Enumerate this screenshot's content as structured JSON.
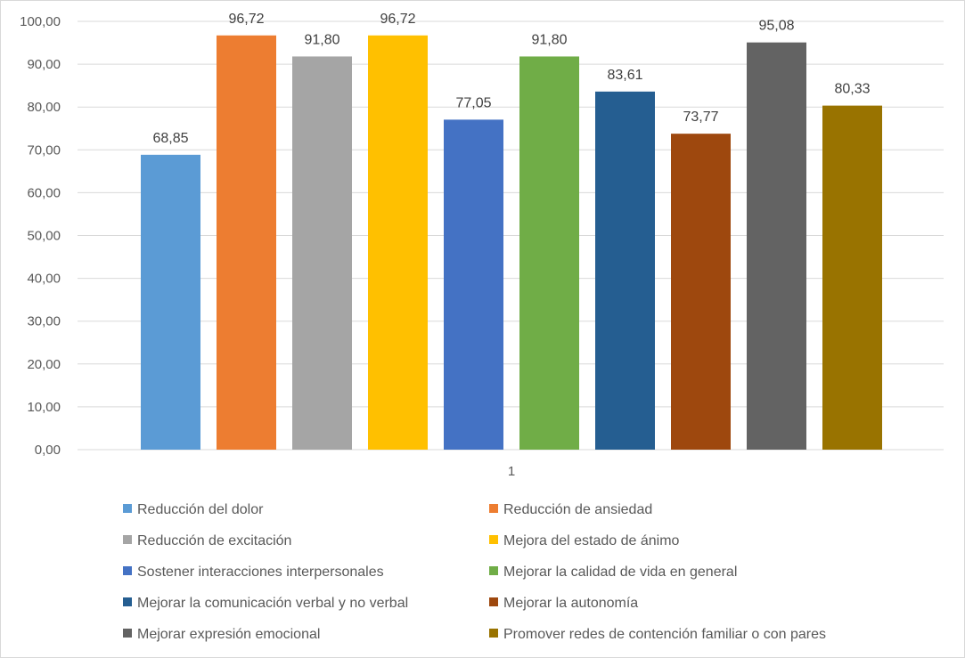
{
  "chart_data": {
    "type": "bar",
    "categories": [
      "1"
    ],
    "ylim": [
      0,
      100
    ],
    "ytick_step": 10,
    "ytick_labels": [
      "0,00",
      "10,00",
      "20,00",
      "30,00",
      "40,00",
      "50,00",
      "60,00",
      "70,00",
      "80,00",
      "90,00",
      "100,00"
    ],
    "grid": true,
    "legend_position": "bottom",
    "series": [
      {
        "name": "Reducción del dolor",
        "values": [
          68.85
        ],
        "label": "68,85",
        "color": "#5b9bd5"
      },
      {
        "name": "Reducción de ansiedad",
        "values": [
          96.72
        ],
        "label": "96,72",
        "color": "#ed7d31"
      },
      {
        "name": "Reducción de excitación",
        "values": [
          91.8
        ],
        "label": "91,80",
        "color": "#a5a5a5"
      },
      {
        "name": "Mejora del estado de ánimo",
        "values": [
          96.72
        ],
        "label": "96,72",
        "color": "#ffc000"
      },
      {
        "name": "Sostener interacciones interpersonales",
        "values": [
          77.05
        ],
        "label": "77,05",
        "color": "#4472c4"
      },
      {
        "name": "Mejorar la calidad de vida en general",
        "values": [
          91.8
        ],
        "label": "91,80",
        "color": "#70ad47"
      },
      {
        "name": "Mejorar la comunicación verbal y no verbal",
        "values": [
          83.61
        ],
        "label": "83,61",
        "color": "#255e91"
      },
      {
        "name": "Mejorar la autonomía",
        "values": [
          73.77
        ],
        "label": "73,77",
        "color": "#9e480e"
      },
      {
        "name": "Mejorar expresión emocional",
        "values": [
          95.08
        ],
        "label": "95,08",
        "color": "#636363"
      },
      {
        "name": "Promover redes de contención familiar o con pares",
        "values": [
          80.33
        ],
        "label": "80,33",
        "color": "#997300"
      }
    ]
  }
}
